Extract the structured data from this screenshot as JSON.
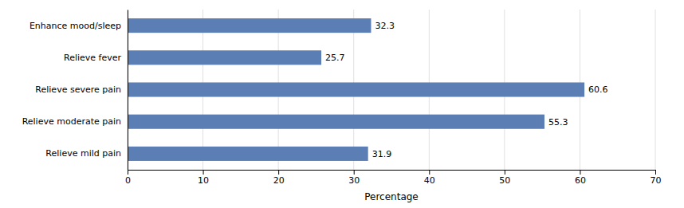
{
  "chart_data": {
    "type": "bar",
    "orientation": "horizontal",
    "categories": [
      "Enhance mood/sleep",
      "Relieve fever",
      "Relieve severe pain",
      "Relieve moderate pain",
      "Relieve mild pain"
    ],
    "values": [
      32.3,
      25.7,
      60.6,
      55.3,
      31.9
    ],
    "color": "#5b7fb5",
    "xlabel": "Percentage",
    "xlim": [
      0,
      70
    ],
    "xticks": [
      0,
      10,
      20,
      30,
      40,
      50,
      60,
      70
    ],
    "grid": true,
    "data_labels": true
  }
}
